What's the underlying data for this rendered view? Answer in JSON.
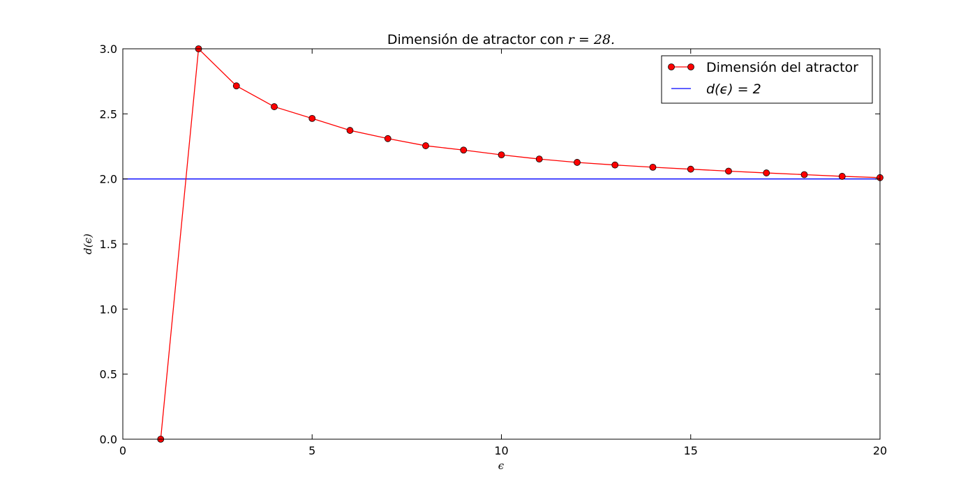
{
  "chart_data": {
    "type": "line",
    "title": "Dimensión de atractor con r = 28.",
    "title_text": "Dimensión de atractor con ",
    "title_math": "r = 28.",
    "xlabel": "ϵ",
    "ylabel": "d(ϵ)",
    "xlim": [
      0,
      20
    ],
    "ylim": [
      0.0,
      3.0
    ],
    "xticks": [
      "0",
      "5",
      "10",
      "15",
      "20"
    ],
    "yticks": [
      "0.0",
      "0.5",
      "1.0",
      "1.5",
      "2.0",
      "2.5",
      "3.0"
    ],
    "legend_position": "top-right",
    "grid": false,
    "series": [
      {
        "name": "Dimensión del atractor",
        "color": "#ff0000",
        "marker": "circle",
        "x": [
          1,
          2,
          3,
          4,
          5,
          6,
          7,
          8,
          9,
          10,
          11,
          12,
          13,
          14,
          15,
          16,
          17,
          18,
          19,
          20
        ],
        "y": [
          0.0,
          3.0,
          2.715,
          2.555,
          2.465,
          2.373,
          2.31,
          2.255,
          2.222,
          2.185,
          2.153,
          2.127,
          2.107,
          2.09,
          2.075,
          2.06,
          2.046,
          2.033,
          2.02,
          2.01
        ]
      },
      {
        "name": "d(ϵ) = 2",
        "color": "#0000ff",
        "marker": "none",
        "x": [
          0,
          20
        ],
        "y": [
          2.0,
          2.0
        ]
      }
    ]
  }
}
